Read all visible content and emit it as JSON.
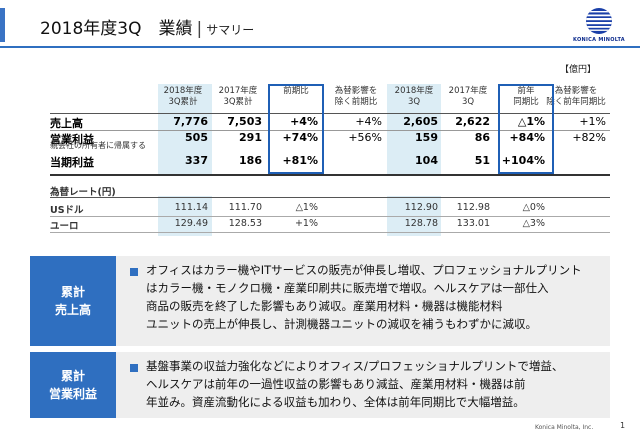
{
  "header": {
    "title": "2018年度3Q　業績",
    "separator": "|",
    "subtitle": "サマリー",
    "brand": "KONICA MINOLTA"
  },
  "unit": "【億円】",
  "table": {
    "columns": [
      "2018年度\n3Q累計",
      "2017年度\n3Q累計",
      "前期比",
      "為替影響を\n除く前期比",
      "2018年度\n3Q",
      "2017年度\n3Q",
      "前年\n同期比",
      "為替影響を\n除く前年同期比"
    ],
    "rows": [
      {
        "label": "売上高",
        "note": "",
        "values": [
          "7,776",
          "7,503",
          "+4%",
          "+4%",
          "2,605",
          "2,622",
          "△1%",
          "+1%"
        ]
      },
      {
        "label": "営業利益",
        "note": "",
        "values": [
          "505",
          "291",
          "+74%",
          "+56%",
          "159",
          "86",
          "+84%",
          "+82%"
        ]
      },
      {
        "label": "当期利益",
        "note": "親会社の所有者に帰属する",
        "values": [
          "337",
          "186",
          "+81%",
          "",
          "104",
          "51",
          "+104%",
          ""
        ]
      }
    ],
    "fx_header": "為替レート(円)",
    "fx_rows": [
      {
        "label": "USドル",
        "values": [
          "111.14",
          "111.70",
          "△1%",
          "",
          "112.90",
          "112.98",
          "△0%",
          ""
        ]
      },
      {
        "label": "ユーロ",
        "values": [
          "129.49",
          "128.53",
          "+1%",
          "",
          "128.78",
          "133.01",
          "△3%",
          ""
        ]
      }
    ]
  },
  "panels": [
    {
      "tag": [
        "累計",
        "売上高"
      ],
      "lines": [
        "オフィスはカラー機やITサービスの販売が伸長し増収、プロフェッショナルプリント",
        "はカラー機・モノクロ機・産業印刷共に販売増で増収。ヘルスケアは一部仕入",
        "商品の販売を終了した影響もあり減収。産業用材料・機器は機能材料",
        "ユニットの売上が伸長し、計測機器ユニットの減収を補うもわずかに減収。"
      ]
    },
    {
      "tag": [
        "累計",
        "営業利益"
      ],
      "lines": [
        "基盤事業の収益力強化などによりオフィス/プロフェッショナルプリントで増益、",
        "ヘルスケアは前年の一過性収益の影響もあり減益、産業用材料・機器は前",
        "年並み。資産流動化による収益も加わり、全体は前年同期比で大幅増益。"
      ]
    }
  ],
  "footer": {
    "company": "Konica Minolta, Inc.",
    "page": "1"
  },
  "colors": {
    "accent": "#2f6fc0",
    "shade": "#dcedf5",
    "highlight": "#1f5fb5",
    "panel": "#eeeeee"
  }
}
